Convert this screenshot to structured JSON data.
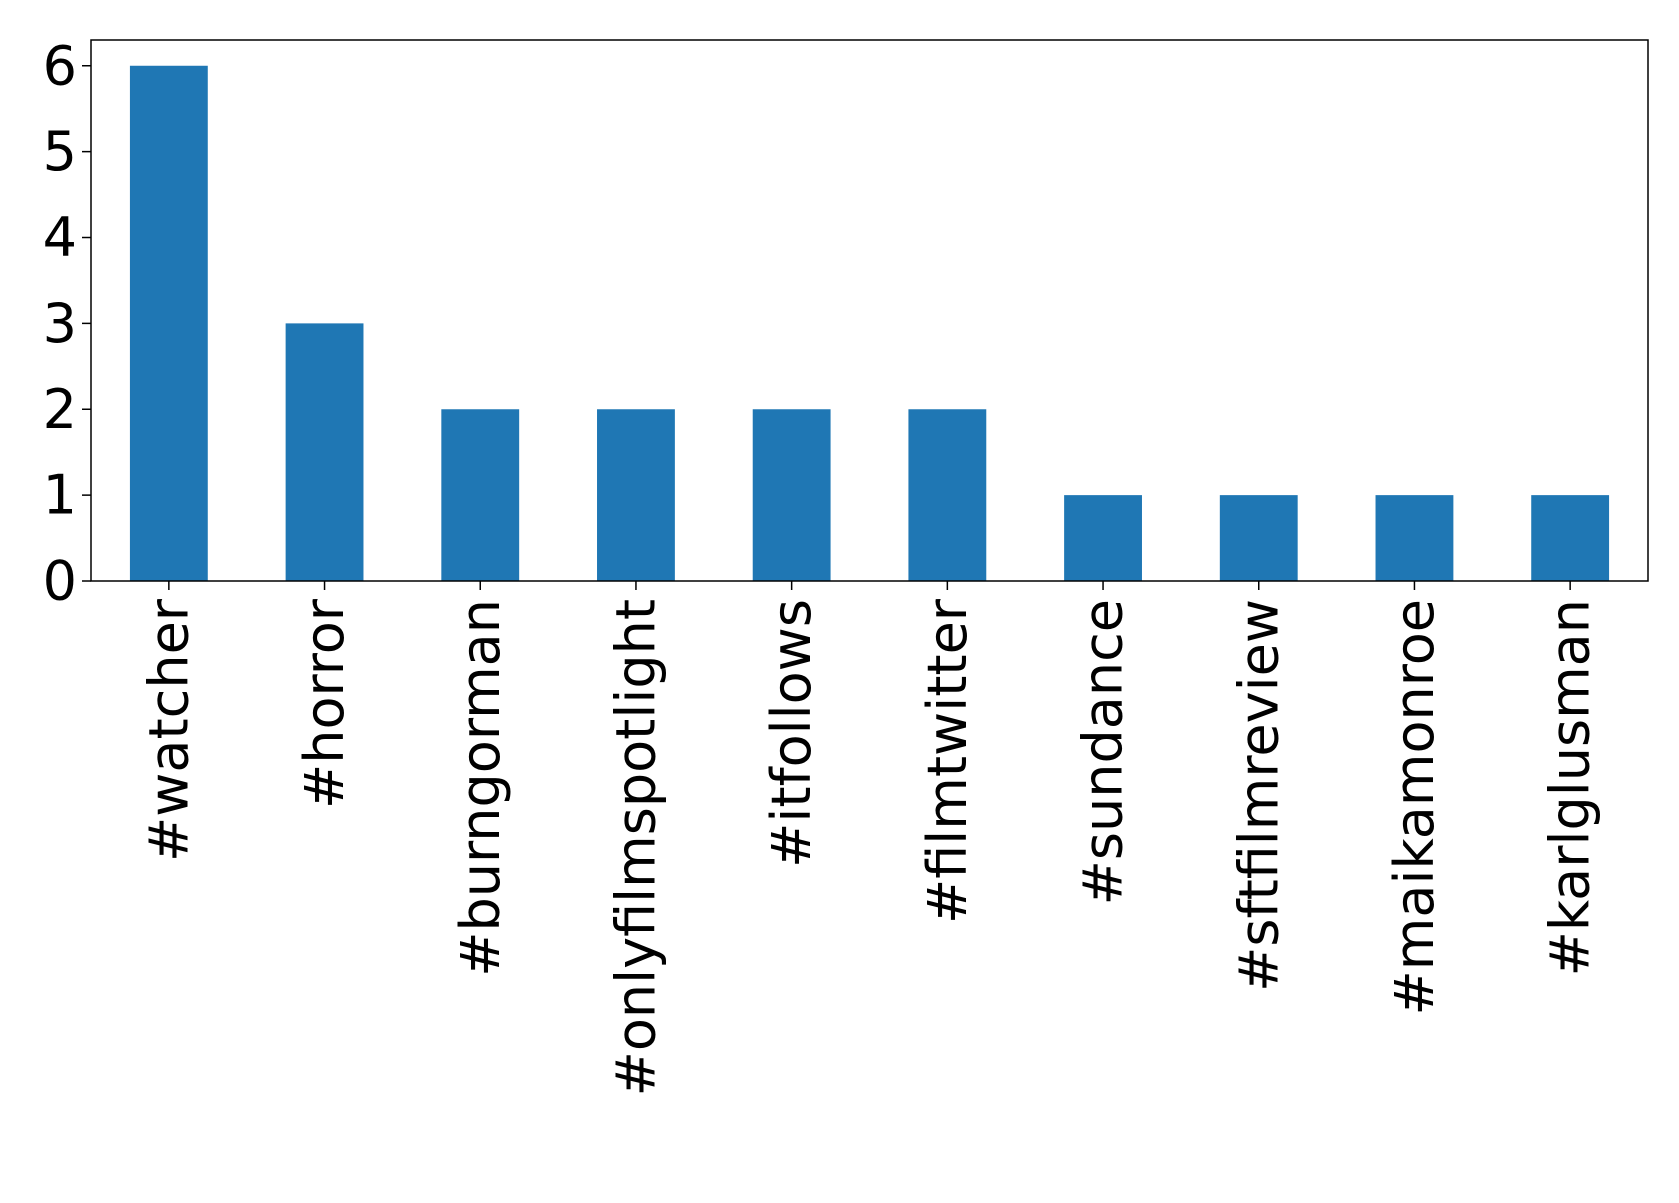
{
  "chart_data": {
    "type": "bar",
    "title": "",
    "xlabel": "",
    "ylabel": "",
    "categories": [
      "#watcher",
      "#horror",
      "#burngorman",
      "#onlyfilmspotlight",
      "#itfollows",
      "#filmtwitter",
      "#sundance",
      "#sftfilmreview",
      "#maikamonroe",
      "#karlglusman"
    ],
    "values": [
      6,
      3,
      2,
      2,
      2,
      2,
      1,
      1,
      1,
      1
    ],
    "ylim": [
      0,
      6.3
    ],
    "yticks": [
      "0",
      "1",
      "2",
      "3",
      "4",
      "5",
      "6"
    ],
    "grid": false,
    "legend": "none",
    "bar_color": "#1f77b4"
  }
}
